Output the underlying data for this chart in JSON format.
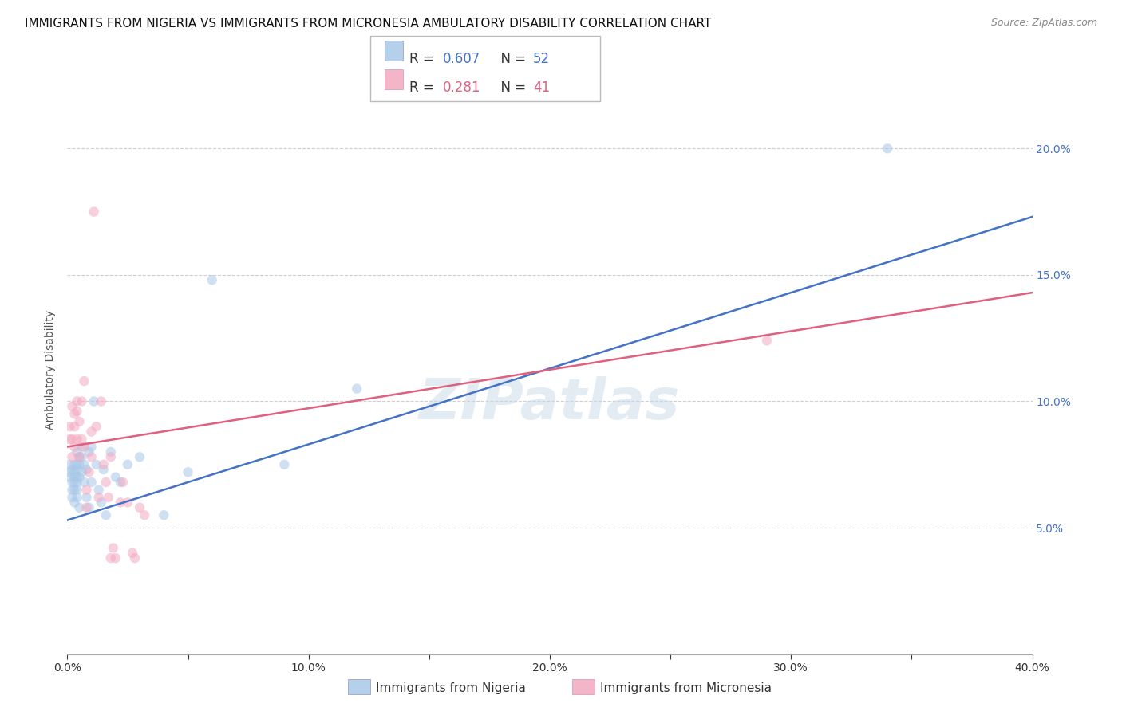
{
  "title": "IMMIGRANTS FROM NIGERIA VS IMMIGRANTS FROM MICRONESIA AMBULATORY DISABILITY CORRELATION CHART",
  "source": "Source: ZipAtlas.com",
  "ylabel": "Ambulatory Disability",
  "xlim": [
    0.0,
    0.4
  ],
  "ylim": [
    0.0,
    0.225
  ],
  "xticks": [
    0.0,
    0.05,
    0.1,
    0.15,
    0.2,
    0.25,
    0.3,
    0.35,
    0.4
  ],
  "yticks": [
    0.05,
    0.1,
    0.15,
    0.2
  ],
  "xtick_labels": [
    "0.0%",
    "",
    "10.0%",
    "",
    "20.0%",
    "",
    "30.0%",
    "",
    "40.0%"
  ],
  "ytick_labels": [
    "5.0%",
    "10.0%",
    "15.0%",
    "20.0%"
  ],
  "blue_color": "#a8c8e8",
  "pink_color": "#f4a8c0",
  "blue_line_color": "#4472c4",
  "pink_line_color": "#e06080",
  "legend_blue_R": "0.607",
  "legend_blue_N": "52",
  "legend_pink_R": "0.281",
  "legend_pink_N": "41",
  "watermark": "ZIPatlas",
  "nigeria_x": [
    0.001,
    0.001,
    0.001,
    0.002,
    0.002,
    0.002,
    0.002,
    0.003,
    0.003,
    0.003,
    0.003,
    0.003,
    0.003,
    0.004,
    0.004,
    0.004,
    0.004,
    0.004,
    0.004,
    0.004,
    0.005,
    0.005,
    0.005,
    0.005,
    0.006,
    0.006,
    0.006,
    0.007,
    0.007,
    0.008,
    0.008,
    0.009,
    0.009,
    0.01,
    0.01,
    0.011,
    0.012,
    0.013,
    0.014,
    0.015,
    0.016,
    0.018,
    0.02,
    0.022,
    0.025,
    0.03,
    0.04,
    0.05,
    0.06,
    0.09,
    0.12,
    0.34
  ],
  "nigeria_y": [
    0.075,
    0.072,
    0.07,
    0.073,
    0.068,
    0.065,
    0.062,
    0.075,
    0.072,
    0.07,
    0.068,
    0.065,
    0.06,
    0.08,
    0.075,
    0.073,
    0.07,
    0.068,
    0.065,
    0.062,
    0.078,
    0.075,
    0.07,
    0.058,
    0.082,
    0.078,
    0.072,
    0.075,
    0.068,
    0.073,
    0.062,
    0.08,
    0.058,
    0.082,
    0.068,
    0.1,
    0.075,
    0.065,
    0.06,
    0.073,
    0.055,
    0.08,
    0.07,
    0.068,
    0.075,
    0.078,
    0.055,
    0.072,
    0.148,
    0.075,
    0.105,
    0.2
  ],
  "micronesia_x": [
    0.001,
    0.001,
    0.002,
    0.002,
    0.002,
    0.003,
    0.003,
    0.003,
    0.004,
    0.004,
    0.004,
    0.005,
    0.005,
    0.006,
    0.006,
    0.007,
    0.007,
    0.008,
    0.008,
    0.009,
    0.01,
    0.01,
    0.011,
    0.012,
    0.013,
    0.014,
    0.015,
    0.016,
    0.017,
    0.018,
    0.018,
    0.019,
    0.02,
    0.022,
    0.023,
    0.025,
    0.027,
    0.028,
    0.03,
    0.032,
    0.29
  ],
  "micronesia_y": [
    0.09,
    0.085,
    0.098,
    0.085,
    0.078,
    0.095,
    0.09,
    0.082,
    0.1,
    0.096,
    0.085,
    0.092,
    0.078,
    0.1,
    0.085,
    0.108,
    0.082,
    0.065,
    0.058,
    0.072,
    0.088,
    0.078,
    0.175,
    0.09,
    0.062,
    0.1,
    0.075,
    0.068,
    0.062,
    0.078,
    0.038,
    0.042,
    0.038,
    0.06,
    0.068,
    0.06,
    0.04,
    0.038,
    0.058,
    0.055,
    0.124
  ],
  "blue_trend_x0": 0.0,
  "blue_trend_y0": 0.053,
  "blue_trend_x1": 0.4,
  "blue_trend_y1": 0.173,
  "pink_trend_x0": 0.0,
  "pink_trend_y0": 0.082,
  "pink_trend_x1": 0.4,
  "pink_trend_y1": 0.143,
  "background_color": "#ffffff",
  "grid_color": "#d0d0d0",
  "title_fontsize": 11,
  "label_fontsize": 10,
  "tick_fontsize": 10,
  "marker_size": 80,
  "marker_alpha": 0.55,
  "line_width": 1.8
}
